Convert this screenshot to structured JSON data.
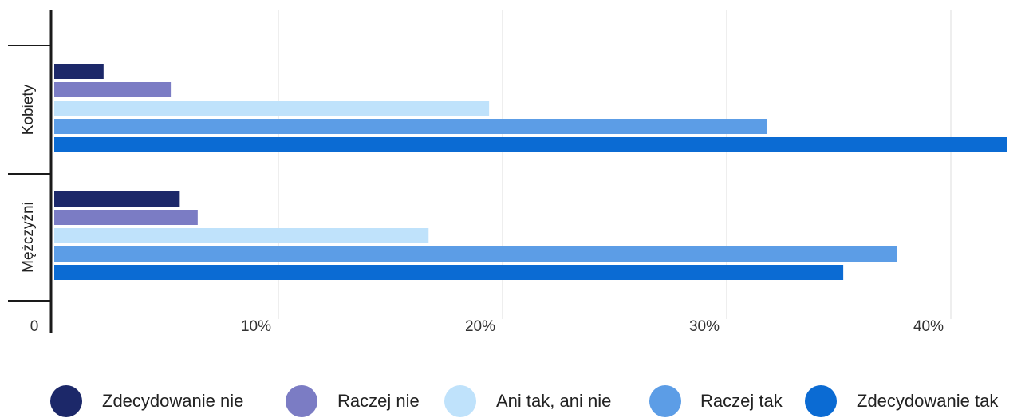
{
  "chart_data": {
    "type": "bar",
    "orientation": "horizontal",
    "categories": [
      "Kobiety",
      "Mężczyźni"
    ],
    "series": [
      {
        "name": "Zdecydowanie nie",
        "color": "#1c2869",
        "values": [
          2.2,
          5.6
        ]
      },
      {
        "name": "Raczej nie",
        "color": "#7b7cc4",
        "values": [
          5.2,
          6.4
        ]
      },
      {
        "name": "Ani tak, ani nie",
        "color": "#bfe2fb",
        "values": [
          19.4,
          16.7
        ]
      },
      {
        "name": "Raczej tak",
        "color": "#5c9de6",
        "values": [
          31.8,
          37.6
        ]
      },
      {
        "name": "Zdecydowanie tak",
        "color": "#0b6bd3",
        "values": [
          42.5,
          35.2
        ]
      }
    ],
    "xticks": [
      "0",
      "10%",
      "20%",
      "30%",
      "40%"
    ],
    "xtick_values": [
      0,
      10,
      20,
      30,
      40
    ],
    "xlim": [
      0,
      43
    ],
    "grid": true,
    "legend": "bottom",
    "title": "",
    "xlabel": "",
    "ylabel": ""
  }
}
